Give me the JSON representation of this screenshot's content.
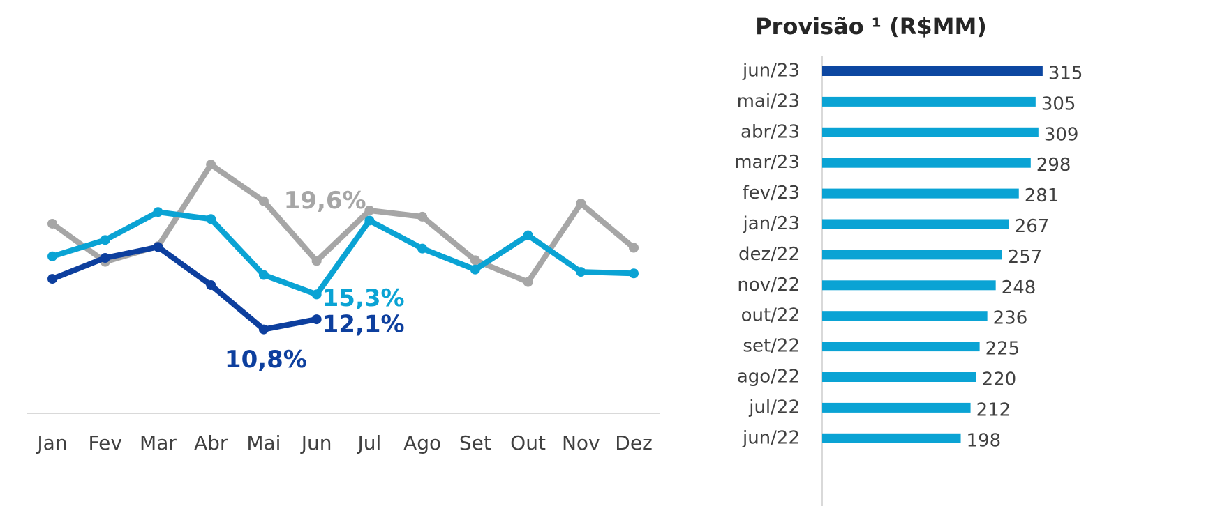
{
  "chart_data": [
    {
      "type": "line",
      "categories": [
        "Jan",
        "Fev",
        "Mar",
        "Abr",
        "Mai",
        "Jun",
        "Jul",
        "Ago",
        "Set",
        "Out",
        "Nov",
        "Dez"
      ],
      "ylim": [
        0,
        40
      ],
      "series": [
        {
          "color": "#a6a6a6",
          "values": [
            24.4,
            19.5,
            21.5,
            32.0,
            27.3,
            19.6,
            26.1,
            25.3,
            19.7,
            16.9,
            27.0,
            21.3
          ],
          "value_labels": [
            null,
            null,
            null,
            null,
            null,
            "19,6%",
            null,
            null,
            null,
            null,
            null,
            null
          ]
        },
        {
          "color": "#0aa3d4",
          "values": [
            20.2,
            22.3,
            25.9,
            25.0,
            17.8,
            15.3,
            24.8,
            21.2,
            18.5,
            22.9,
            18.2,
            18.0
          ],
          "value_labels": [
            null,
            null,
            null,
            null,
            null,
            "15,3%",
            null,
            null,
            null,
            null,
            null,
            null
          ]
        },
        {
          "color": "#0d3f9e",
          "values": [
            17.3,
            20.0,
            21.4,
            16.5,
            10.8,
            12.1,
            null,
            null,
            null,
            null,
            null,
            null
          ],
          "value_labels": [
            null,
            null,
            null,
            null,
            "10,8%",
            "12,1%",
            null,
            null,
            null,
            null,
            null,
            null
          ]
        }
      ]
    },
    {
      "type": "hbar",
      "title": "Provisão ¹ (R$MM)",
      "categories": [
        "jun/23",
        "mai/23",
        "abr/23",
        "mar/23",
        "fev/23",
        "jan/23",
        "dez/22",
        "nov/22",
        "out/22",
        "set/22",
        "ago/22",
        "jul/22",
        "jun/22"
      ],
      "values": [
        315,
        305,
        309,
        298,
        281,
        267,
        257,
        248,
        236,
        225,
        220,
        212,
        198
      ],
      "colors": [
        "#0d47a1",
        "#0aa3d4",
        "#0aa3d4",
        "#0aa3d4",
        "#0aa3d4",
        "#0aa3d4",
        "#0aa3d4",
        "#0aa3d4",
        "#0aa3d4",
        "#0aa3d4",
        "#0aa3d4",
        "#0aa3d4",
        "#0aa3d4"
      ],
      "xlim": [
        0,
        370
      ]
    }
  ]
}
